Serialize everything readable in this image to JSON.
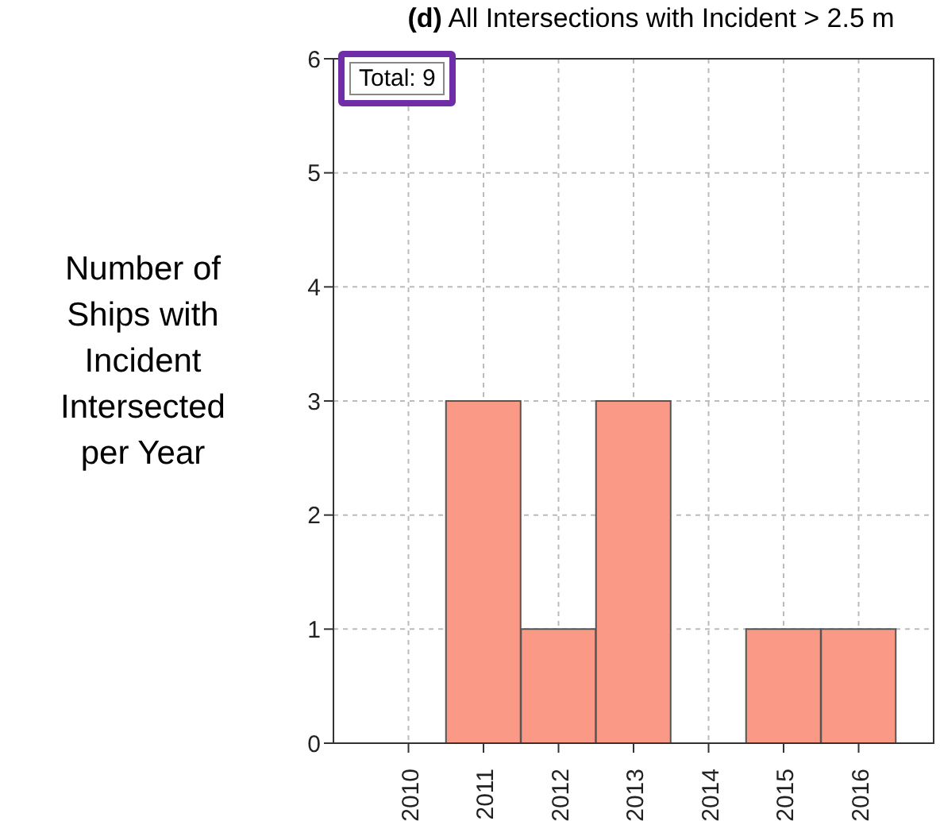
{
  "chart_data": {
    "type": "bar",
    "title": "(d) All Intersections with Incident > 2.5 m",
    "ylabel": "Number of Ships with Incident Intersected per Year",
    "categories": [
      "2010",
      "2011",
      "2012",
      "2013",
      "2014",
      "2015",
      "2016"
    ],
    "values": [
      0,
      3,
      1,
      3,
      0,
      1,
      1
    ],
    "color": "#fa9a86",
    "ylim": [
      0,
      6
    ],
    "yticks": [
      0,
      1,
      2,
      3,
      4,
      5,
      6
    ],
    "grid": true,
    "annotations": [
      "Total: 9"
    ]
  }
}
